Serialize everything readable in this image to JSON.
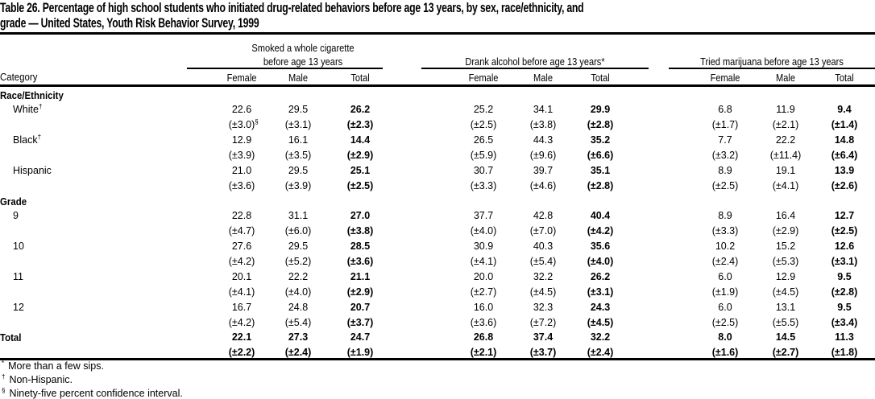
{
  "title_line1": "Table 26. Percentage of high school students who initiated drug-related behaviors before age 13 years, by sex, race/ethnicity, and",
  "title_line2": "grade — United States, Youth Risk Behavior Survey, 1999",
  "groups": [
    {
      "line1": "Smoked a whole cigarette",
      "line2": "before age 13 years"
    },
    {
      "line1": "",
      "line2": "Drank alcohol before age 13 years*"
    },
    {
      "line1": "",
      "line2": "Tried marijuana before age 13 years"
    }
  ],
  "category_header": "Category",
  "sub_headers": [
    "Female",
    "Male",
    "Total",
    "Female",
    "Male",
    "Total",
    "Female",
    "Male",
    "Total"
  ],
  "sections": [
    {
      "label": "Race/Ethnicity",
      "rows": [
        {
          "label": "White",
          "mark": "†",
          "values": [
            "22.6",
            "29.5",
            "26.2",
            "25.2",
            "34.1",
            "29.9",
            "6.8",
            "11.9",
            "9.4"
          ],
          "ci": [
            "(±3.0)",
            "(±3.1)",
            "(±2.3)",
            "(±2.5)",
            "(±3.8)",
            "(±2.8)",
            "(±1.7)",
            "(±2.1)",
            "(±1.4)"
          ],
          "ci_first_mark": "§"
        },
        {
          "label": "Black",
          "mark": "†",
          "values": [
            "12.9",
            "16.1",
            "14.4",
            "26.5",
            "44.3",
            "35.2",
            "7.7",
            "22.2",
            "14.8"
          ],
          "ci": [
            "(±3.9)",
            "(±3.5)",
            "(±2.9)",
            "(±5.9)",
            "(±9.6)",
            "(±6.6)",
            "(±3.2)",
            "(±11.4)",
            "(±6.4)"
          ]
        },
        {
          "label": "Hispanic",
          "mark": "",
          "values": [
            "21.0",
            "29.5",
            "25.1",
            "30.7",
            "39.7",
            "35.1",
            "8.9",
            "19.1",
            "13.9"
          ],
          "ci": [
            "(±3.6)",
            "(±3.9)",
            "(±2.5)",
            "(±3.3)",
            "(±4.6)",
            "(±2.8)",
            "(±2.5)",
            "(±4.1)",
            "(±2.6)"
          ]
        }
      ]
    },
    {
      "label": "Grade",
      "rows": [
        {
          "label": "9",
          "mark": "",
          "values": [
            "22.8",
            "31.1",
            "27.0",
            "37.7",
            "42.8",
            "40.4",
            "8.9",
            "16.4",
            "12.7"
          ],
          "ci": [
            "(±4.7)",
            "(±6.0)",
            "(±3.8)",
            "(±4.0)",
            "(±7.0)",
            "(±4.2)",
            "(±3.3)",
            "(±2.9)",
            "(±2.5)"
          ]
        },
        {
          "label": "10",
          "mark": "",
          "values": [
            "27.6",
            "29.5",
            "28.5",
            "30.9",
            "40.3",
            "35.6",
            "10.2",
            "15.2",
            "12.6"
          ],
          "ci": [
            "(±4.2)",
            "(±5.2)",
            "(±3.6)",
            "(±4.1)",
            "(±5.4)",
            "(±4.0)",
            "(±2.4)",
            "(±5.3)",
            "(±3.1)"
          ]
        },
        {
          "label": "11",
          "mark": "",
          "values": [
            "20.1",
            "22.2",
            "21.1",
            "20.0",
            "32.2",
            "26.2",
            "6.0",
            "12.9",
            "9.5"
          ],
          "ci": [
            "(±4.1)",
            "(±4.0)",
            "(±2.9)",
            "(±2.7)",
            "(±4.5)",
            "(±3.1)",
            "(±1.9)",
            "(±4.5)",
            "(±2.8)"
          ]
        },
        {
          "label": "12",
          "mark": "",
          "values": [
            "16.7",
            "24.8",
            "20.7",
            "16.0",
            "32.3",
            "24.3",
            "6.0",
            "13.1",
            "9.5"
          ],
          "ci": [
            "(±4.2)",
            "(±5.4)",
            "(±3.7)",
            "(±3.6)",
            "(±7.2)",
            "(±4.5)",
            "(±2.5)",
            "(±5.5)",
            "(±3.4)"
          ]
        }
      ]
    }
  ],
  "total_row": {
    "label": "Total",
    "values": [
      "22.1",
      "27.3",
      "24.7",
      "26.8",
      "37.4",
      "32.2",
      "8.0",
      "14.5",
      "11.3"
    ],
    "ci": [
      "(±2.2)",
      "(±2.4)",
      "(±1.9)",
      "(±2.1)",
      "(±3.7)",
      "(±2.4)",
      "(±1.6)",
      "(±2.7)",
      "(±1.8)"
    ]
  },
  "footnotes": [
    {
      "mark": "*",
      "text": "More than a few sips."
    },
    {
      "mark": "†",
      "text": "Non-Hispanic."
    },
    {
      "mark": "§",
      "text": "Ninety-five percent confidence interval."
    }
  ]
}
